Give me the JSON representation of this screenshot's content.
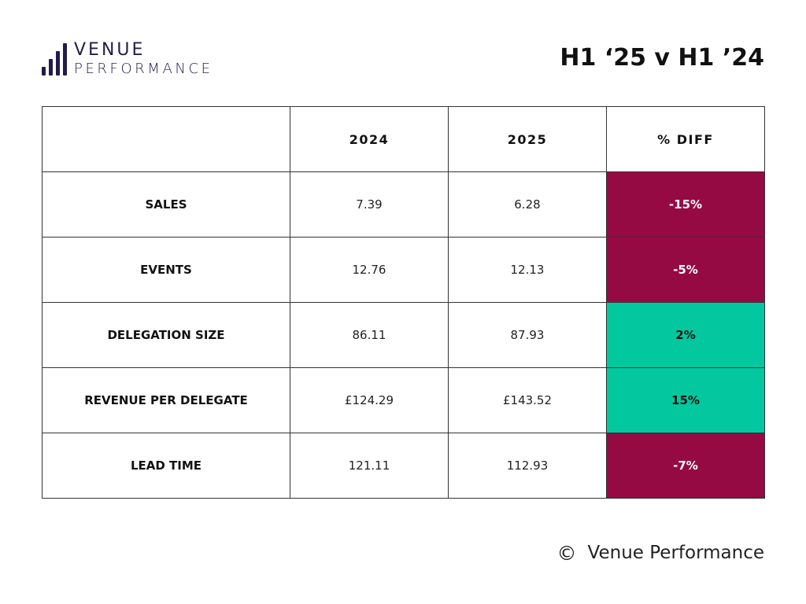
{
  "logo": {
    "line1": "VENUE",
    "line2": "PERFORMANCE",
    "icon": "bar-chart-icon",
    "color": "#231b4a"
  },
  "title": "H1 ‘25 v H1 ’24",
  "table": {
    "headers": [
      "",
      "2024",
      "2025",
      "% DIFF"
    ],
    "rows": [
      {
        "label": "SALES",
        "v2024": "7.39",
        "v2025": "6.28",
        "diff": "-15%",
        "trend": "negative"
      },
      {
        "label": "EVENTS",
        "v2024": "12.76",
        "v2025": "12.13",
        "diff": "-5%",
        "trend": "negative"
      },
      {
        "label": "DELEGATION SIZE",
        "v2024": "86.11",
        "v2025": "87.93",
        "diff": "2%",
        "trend": "positive"
      },
      {
        "label": "REVENUE PER DELEGATE",
        "v2024": "£124.29",
        "v2025": "£143.52",
        "diff": "15%",
        "trend": "positive"
      },
      {
        "label": "LEAD TIME",
        "v2024": "121.11",
        "v2025": "112.93",
        "diff": "-7%",
        "trend": "negative"
      }
    ]
  },
  "colors": {
    "negative": "#960a44",
    "positive": "#03c89f",
    "brand": "#231b4a"
  },
  "footer": {
    "copyright_symbol": "©",
    "text": "Venue Performance",
    "icon": "copyright-icon"
  }
}
